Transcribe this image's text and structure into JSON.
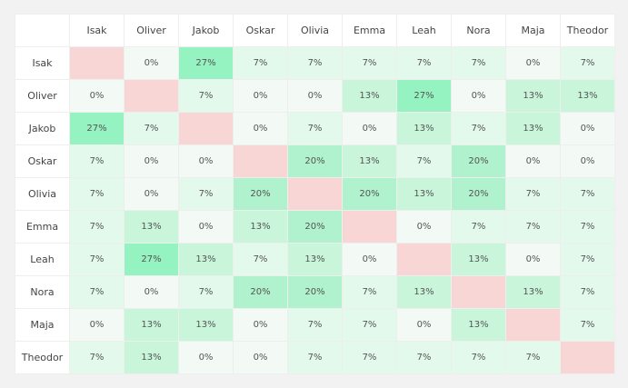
{
  "table": {
    "columns": [
      "Isak",
      "Oliver",
      "Jakob",
      "Oskar",
      "Olivia",
      "Emma",
      "Leah",
      "Nora",
      "Maja",
      "Theodor"
    ],
    "rows": [
      {
        "label": "Isak",
        "cells": [
          null,
          "0%",
          "27%",
          "7%",
          "7%",
          "7%",
          "7%",
          "7%",
          "0%",
          "7%"
        ]
      },
      {
        "label": "Oliver",
        "cells": [
          "0%",
          null,
          "7%",
          "0%",
          "0%",
          "13%",
          "27%",
          "0%",
          "13%",
          "13%"
        ]
      },
      {
        "label": "Jakob",
        "cells": [
          "27%",
          "7%",
          null,
          "0%",
          "7%",
          "0%",
          "13%",
          "7%",
          "13%",
          "0%"
        ]
      },
      {
        "label": "Oskar",
        "cells": [
          "7%",
          "0%",
          "0%",
          null,
          "20%",
          "13%",
          "7%",
          "20%",
          "0%",
          "0%"
        ]
      },
      {
        "label": "Olivia",
        "cells": [
          "7%",
          "0%",
          "7%",
          "20%",
          null,
          "20%",
          "13%",
          "20%",
          "7%",
          "7%"
        ]
      },
      {
        "label": "Emma",
        "cells": [
          "7%",
          "13%",
          "0%",
          "13%",
          "20%",
          null,
          "0%",
          "7%",
          "7%",
          "7%"
        ]
      },
      {
        "label": "Leah",
        "cells": [
          "7%",
          "27%",
          "13%",
          "7%",
          "13%",
          "0%",
          null,
          "13%",
          "0%",
          "7%"
        ]
      },
      {
        "label": "Nora",
        "cells": [
          "7%",
          "0%",
          "7%",
          "20%",
          "20%",
          "7%",
          "13%",
          null,
          "13%",
          "7%"
        ]
      },
      {
        "label": "Maja",
        "cells": [
          "0%",
          "13%",
          "13%",
          "0%",
          "7%",
          "7%",
          "0%",
          "13%",
          null,
          "7%"
        ]
      },
      {
        "label": "Theodor",
        "cells": [
          "7%",
          "13%",
          "0%",
          "0%",
          "7%",
          "7%",
          "7%",
          "7%",
          "7%",
          null
        ]
      }
    ]
  }
}
